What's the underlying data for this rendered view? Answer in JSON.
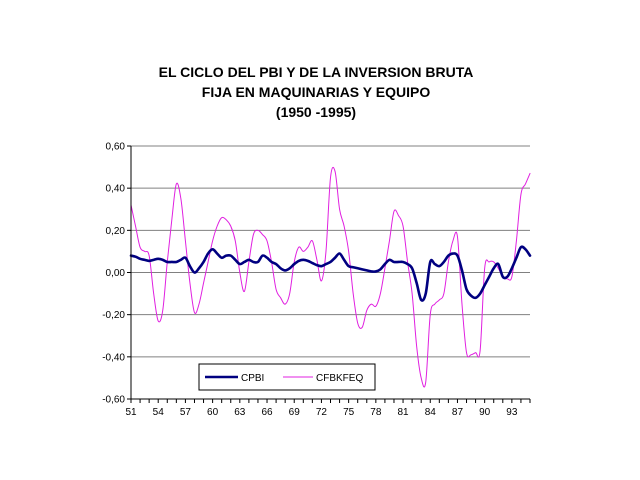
{
  "chart_data": {
    "type": "line",
    "title_lines": [
      "EL CICLO DEL PBI Y DE LA INVERSION BRUTA",
      "FIJA EN MAQUINARIAS Y EQUIPO",
      "(1950 -1995)"
    ],
    "xlabel": "",
    "ylabel": "",
    "ylim": [
      -0.6,
      0.6
    ],
    "xlim": [
      51,
      95
    ],
    "y_ticks": [
      "0,60",
      "0,40",
      "0,20",
      "0,00",
      "-0,20",
      "-0,40",
      "-0,60"
    ],
    "y_tick_values": [
      0.6,
      0.4,
      0.2,
      0.0,
      -0.2,
      -0.4,
      -0.6
    ],
    "x_ticks": [
      "51",
      "54",
      "57",
      "60",
      "63",
      "66",
      "69",
      "72",
      "75",
      "78",
      "81",
      "84",
      "87",
      "90",
      "93"
    ],
    "x_tick_values": [
      51,
      54,
      57,
      60,
      63,
      66,
      69,
      72,
      75,
      78,
      81,
      84,
      87,
      90,
      93
    ],
    "grid": "horizontal",
    "legend": "bottom-left",
    "series": [
      {
        "name": "CPBI",
        "color": "#000080",
        "x": [
          51,
          51.5,
          52,
          52.5,
          53,
          53.5,
          54,
          54.5,
          55,
          55.5,
          56,
          56.5,
          57,
          57.5,
          58,
          58.5,
          59,
          59.5,
          60,
          60.5,
          61,
          61.5,
          62,
          62.5,
          63,
          63.5,
          64,
          64.5,
          65,
          65.5,
          66,
          66.5,
          67,
          67.5,
          68,
          68.5,
          69,
          69.5,
          70,
          70.5,
          71,
          71.5,
          72,
          72.5,
          73,
          73.5,
          74,
          74.5,
          75,
          75.5,
          76,
          76.5,
          77,
          77.5,
          78,
          78.5,
          79,
          79.5,
          80,
          80.5,
          81,
          81.5,
          82,
          82.5,
          83,
          83.5,
          84,
          84.5,
          85,
          85.5,
          86,
          86.5,
          87,
          87.5,
          88,
          88.5,
          89,
          89.5,
          90,
          90.5,
          91,
          91.5,
          92,
          92.5,
          93,
          93.5,
          94,
          94.5,
          95
        ],
        "values": [
          0.08,
          0.075,
          0.065,
          0.06,
          0.055,
          0.06,
          0.065,
          0.06,
          0.05,
          0.05,
          0.05,
          0.06,
          0.07,
          0.03,
          0.0,
          0.02,
          0.05,
          0.09,
          0.11,
          0.09,
          0.07,
          0.08,
          0.08,
          0.06,
          0.04,
          0.05,
          0.06,
          0.05,
          0.05,
          0.08,
          0.07,
          0.05,
          0.04,
          0.02,
          0.01,
          0.02,
          0.04,
          0.055,
          0.06,
          0.055,
          0.045,
          0.035,
          0.03,
          0.04,
          0.05,
          0.07,
          0.09,
          0.06,
          0.03,
          0.025,
          0.02,
          0.015,
          0.01,
          0.005,
          0.005,
          0.015,
          0.04,
          0.06,
          0.05,
          0.05,
          0.05,
          0.04,
          0.02,
          -0.05,
          -0.13,
          -0.1,
          0.05,
          0.04,
          0.03,
          0.05,
          0.08,
          0.09,
          0.08,
          0.01,
          -0.08,
          -0.11,
          -0.12,
          -0.1,
          -0.06,
          -0.02,
          0.02,
          0.04,
          -0.02,
          -0.02,
          0.02,
          0.07,
          0.12,
          0.11,
          0.08
        ]
      },
      {
        "name": "CFBKFEQ",
        "color": "#e020e0",
        "x": [
          51,
          51.5,
          52,
          52.5,
          53,
          53.5,
          54,
          54.5,
          55,
          55.5,
          56,
          56.5,
          57,
          57.5,
          58,
          58.5,
          59,
          59.5,
          60,
          60.5,
          61,
          61.5,
          62,
          62.5,
          63,
          63.5,
          64,
          64.5,
          65,
          65.5,
          66,
          66.5,
          67,
          67.5,
          68,
          68.5,
          69,
          69.5,
          70,
          70.5,
          71,
          71.5,
          72,
          72.5,
          73,
          73.5,
          74,
          74.5,
          75,
          75.5,
          76,
          76.5,
          77,
          77.5,
          78,
          78.5,
          79,
          79.5,
          80,
          80.5,
          81,
          81.5,
          82,
          82.5,
          83,
          83.5,
          84,
          84.5,
          85,
          85.5,
          86,
          86.5,
          87,
          87.5,
          88,
          88.5,
          89,
          89.5,
          90,
          90.5,
          91,
          91.5,
          92,
          92.5,
          93,
          93.5,
          94,
          94.5,
          95
        ],
        "values": [
          0.32,
          0.22,
          0.12,
          0.1,
          0.08,
          -0.1,
          -0.23,
          -0.18,
          0.05,
          0.25,
          0.42,
          0.35,
          0.15,
          -0.05,
          -0.19,
          -0.15,
          -0.05,
          0.05,
          0.15,
          0.22,
          0.26,
          0.25,
          0.22,
          0.15,
          0.0,
          -0.09,
          0.05,
          0.18,
          0.2,
          0.18,
          0.15,
          0.05,
          -0.08,
          -0.12,
          -0.15,
          -0.1,
          0.05,
          0.12,
          0.1,
          0.12,
          0.15,
          0.06,
          -0.04,
          0.1,
          0.45,
          0.48,
          0.3,
          0.22,
          0.1,
          -0.1,
          -0.24,
          -0.26,
          -0.18,
          -0.15,
          -0.16,
          -0.1,
          0.02,
          0.15,
          0.29,
          0.27,
          0.22,
          0.05,
          -0.1,
          -0.35,
          -0.5,
          -0.52,
          -0.2,
          -0.15,
          -0.13,
          -0.1,
          0.05,
          0.15,
          0.17,
          -0.15,
          -0.38,
          -0.39,
          -0.38,
          -0.37,
          0.02,
          0.05,
          0.05,
          0.02,
          -0.02,
          -0.03,
          -0.02,
          0.15,
          0.37,
          0.42,
          0.47
        ]
      }
    ]
  }
}
